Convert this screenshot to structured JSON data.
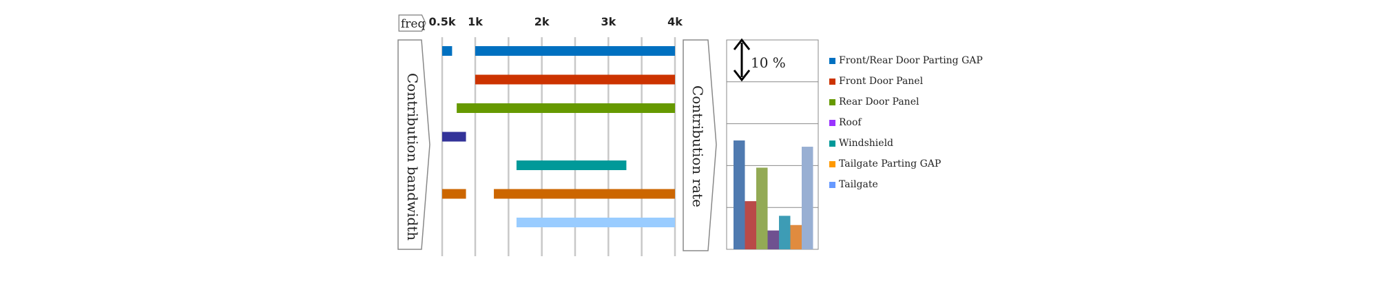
{
  "chart_data": [
    {
      "type": "bar",
      "orientation": "horizontal-range",
      "title": "",
      "xlabel": "freq",
      "ylabel": "Contribution bandwidth",
      "x_ticks": [
        "0.5k",
        "1k",
        "2k",
        "3k",
        "4k"
      ],
      "x_tick_values": [
        500,
        1000,
        2000,
        3000,
        4000
      ],
      "x_gridlines": [
        500,
        1000,
        1500,
        2000,
        2500,
        3000,
        3500,
        4000
      ],
      "xlim": [
        500,
        4000
      ],
      "series": [
        {
          "name": "Front/Rear Door Parting GAP",
          "color": "#0070c0",
          "ranges": [
            [
              500,
              650
            ],
            [
              1000,
              4000
            ]
          ]
        },
        {
          "name": "Front Door Panel",
          "color": "#cc3300",
          "ranges": [
            [
              1000,
              4000
            ]
          ]
        },
        {
          "name": "Rear Door Panel",
          "color": "#669900",
          "ranges": [
            [
              720,
              4000
            ]
          ]
        },
        {
          "name": "Roof",
          "color": "#333399",
          "ranges": [
            [
              500,
              860
            ]
          ]
        },
        {
          "name": "Windshield",
          "color": "#009999",
          "ranges": [
            [
              1620,
              3270
            ]
          ]
        },
        {
          "name": "Tailgate Parting GAP",
          "color": "#cc6600",
          "ranges": [
            [
              500,
              860
            ],
            [
              1280,
              4000
            ]
          ]
        },
        {
          "name": "Tailgate",
          "color": "#99ccff",
          "ranges": [
            [
              1620,
              4000
            ]
          ]
        }
      ]
    },
    {
      "type": "bar",
      "title": "",
      "ylabel": "Contribution rate",
      "annotation": "10 %",
      "ylim": [
        0,
        50
      ],
      "grid_step": 10,
      "categories": [
        "Front/Rear Door Parting GAP",
        "Front Door Panel",
        "Rear Door Panel",
        "Roof",
        "Windshield",
        "Tailgate Parting GAP",
        "Tailgate"
      ],
      "values": [
        26,
        11.5,
        19.5,
        4.5,
        8,
        5.8,
        24.5
      ],
      "colors": [
        "#4f7ab0",
        "#b94a48",
        "#93aa55",
        "#6f5190",
        "#3d9cb5",
        "#e08b3f",
        "#98afd3"
      ]
    }
  ],
  "legend": [
    {
      "label": "Front/Rear Door Parting GAP",
      "color": "#0070c0"
    },
    {
      "label": "Front Door Panel",
      "color": "#cc3300"
    },
    {
      "label": "Rear Door Panel",
      "color": "#669900"
    },
    {
      "label": "Roof",
      "color": "#9933ff"
    },
    {
      "label": "Windshield",
      "color": "#009999"
    },
    {
      "label": "Tailgate Parting GAP",
      "color": "#ff9900"
    },
    {
      "label": "Tailgate",
      "color": "#6699ff"
    }
  ]
}
